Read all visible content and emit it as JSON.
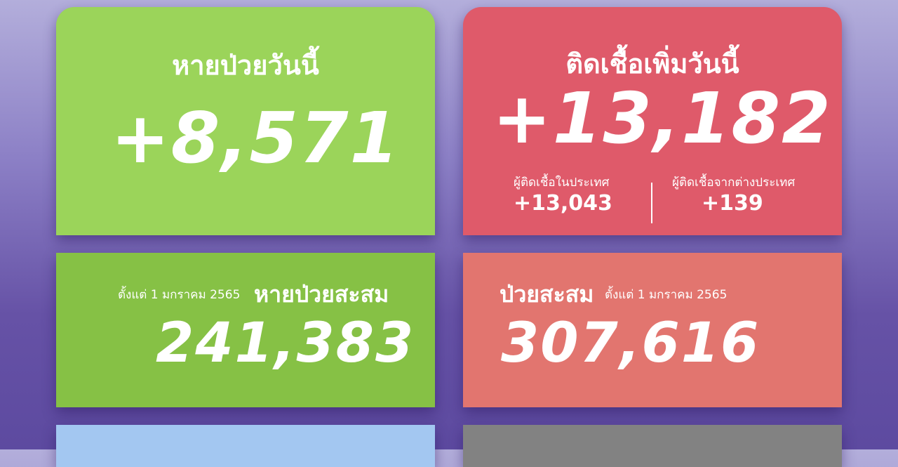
{
  "recovered_today": {
    "title": "หายป่วยวันนี้",
    "value": "+8,571",
    "color": "#9bd45a"
  },
  "new_cases_today": {
    "title": "ติดเชื้อเพิ่มวันนี้",
    "value": "+13,182",
    "color": "#df5a6a",
    "domestic": {
      "label": "ผู้ติดเชื้อในประเทศ",
      "value": "+13,043"
    },
    "imported": {
      "label": "ผู้ติดเชื้อจากต่างประเทศ",
      "value": "+139"
    }
  },
  "recovered_cumulative": {
    "since": "ตั้งแต่ 1 มกราคม 2565",
    "title": "หายป่วยสะสม",
    "value": "241,383",
    "color": "#86c145"
  },
  "cases_cumulative": {
    "title": "ป่วยสะสม",
    "since": "ตั้งแต่ 1 มกราคม 2565",
    "value": "307,616",
    "color": "#e2756f"
  }
}
